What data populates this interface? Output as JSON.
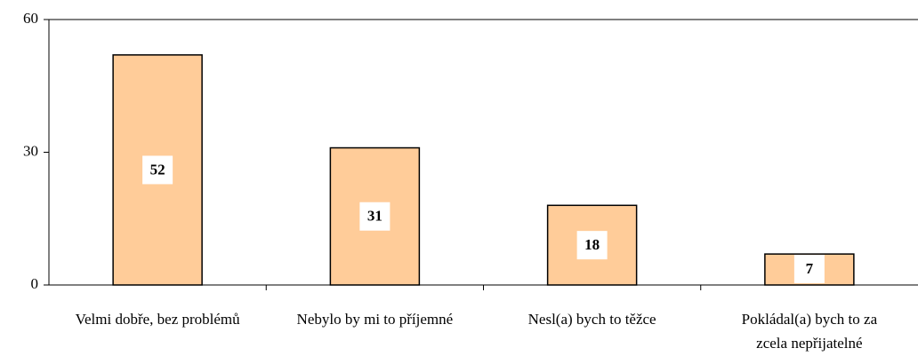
{
  "chart_data": {
    "type": "bar",
    "categories": [
      "Velmi dobře, bez problémů",
      "Nebylo by mi to příjemné",
      "Nesl(a) bych to těžce",
      "Pokládal(a) bych to za zcela nepřijatelné"
    ],
    "values": [
      52,
      31,
      18,
      7
    ],
    "color": "#ffcc99",
    "ylim": [
      0,
      60
    ],
    "yticks": [
      0,
      30,
      60
    ]
  }
}
